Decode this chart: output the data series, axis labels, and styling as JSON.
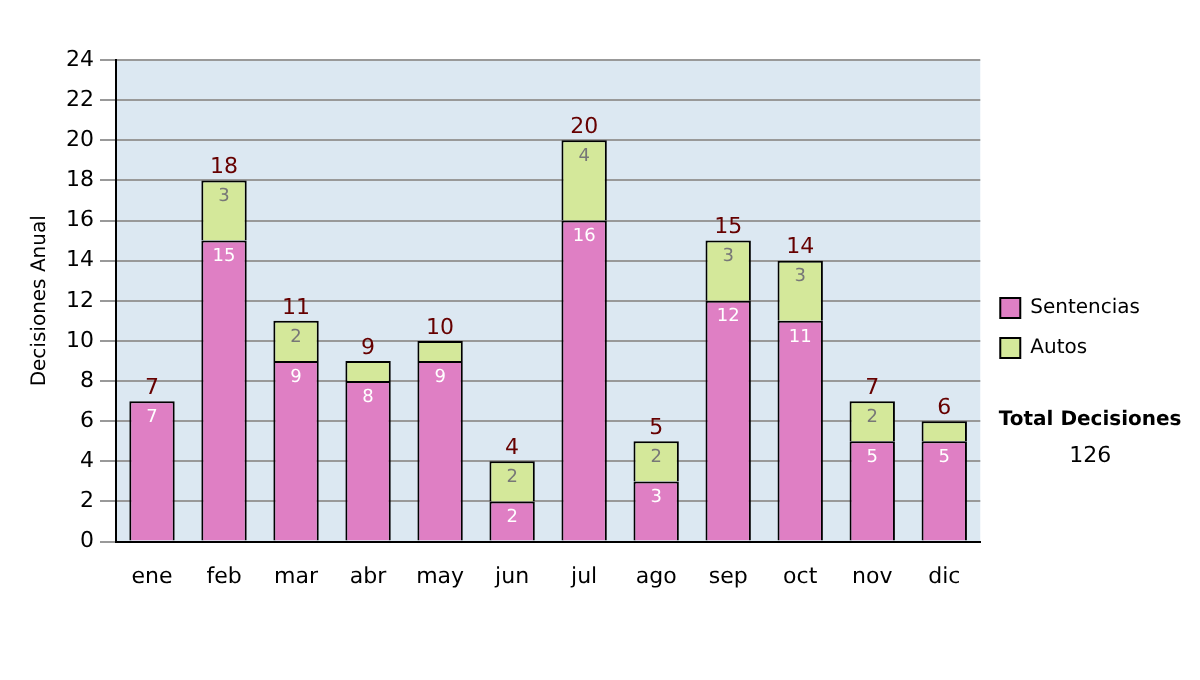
{
  "chart_data": {
    "type": "bar",
    "stacked": true,
    "ylabel": "Decisiones Anual",
    "categories": [
      "ene",
      "feb",
      "mar",
      "abr",
      "may",
      "jun",
      "jul",
      "ago",
      "sep",
      "oct",
      "nov",
      "dic"
    ],
    "series": [
      {
        "name": "Sentencias",
        "color": "#df7fc4",
        "values": [
          7,
          15,
          9,
          8,
          9,
          2,
          16,
          3,
          12,
          11,
          5,
          5
        ],
        "value_labels": [
          "7",
          "15",
          "9",
          "8",
          "9",
          "2",
          "16",
          "3",
          "12",
          "11",
          "5",
          "5"
        ]
      },
      {
        "name": "Autos",
        "color": "#d4e89a",
        "values": [
          0,
          3,
          2,
          1,
          1,
          2,
          4,
          2,
          3,
          3,
          2,
          1
        ],
        "value_labels": [
          null,
          "3",
          "2",
          null,
          null,
          "2",
          "4",
          "2",
          "3",
          "3",
          "2",
          null
        ]
      }
    ],
    "totals": [
      "7",
      "18",
      "11",
      "9",
      "10",
      "4",
      "20",
      "5",
      "15",
      "14",
      "7",
      "6"
    ],
    "ylim": [
      0,
      24
    ],
    "yticks": [
      0,
      2,
      4,
      6,
      8,
      10,
      12,
      14,
      16,
      18,
      20,
      22,
      24
    ],
    "grid": "y",
    "legend": "right",
    "annotations": [
      "Total Decisiones",
      "126"
    ]
  }
}
